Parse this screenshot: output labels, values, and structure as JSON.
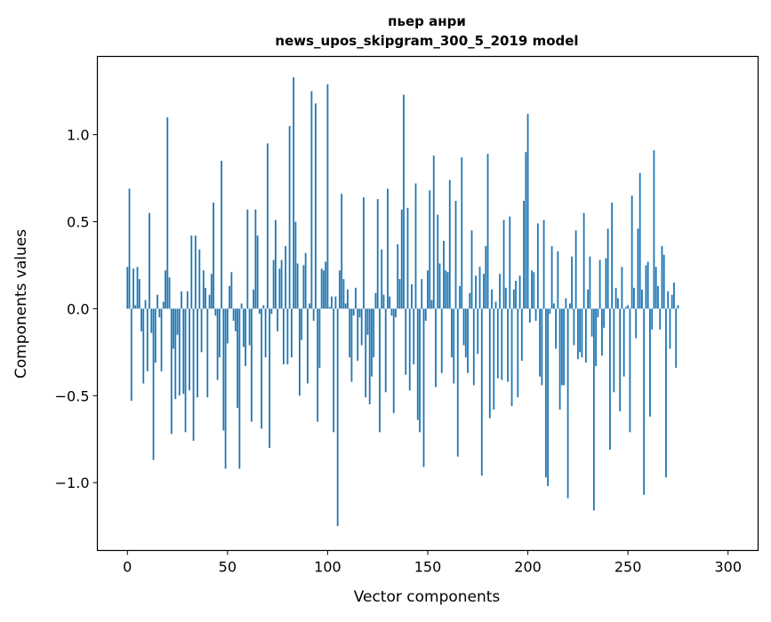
{
  "chart_data": {
    "type": "bar",
    "title": "пьер анри",
    "subtitle": "news_upos_skipgram_300_5_2019 model",
    "xlabel": "Vector components",
    "ylabel": "Components values",
    "xlim": [
      -15,
      315
    ],
    "ylim": [
      -1.39,
      1.45
    ],
    "xticks": [
      0,
      50,
      100,
      150,
      200,
      250,
      300
    ],
    "yticks": [
      -1.0,
      -0.5,
      0.0,
      0.5,
      1.0
    ],
    "ytick_labels": [
      "−1.0",
      "−0.5",
      "0.0",
      "0.5",
      "1.0"
    ],
    "color": "#1f77b4",
    "grid": false,
    "values": [
      0.24,
      0.69,
      -0.53,
      0.23,
      0.02,
      0.24,
      0.17,
      -0.13,
      -0.43,
      0.05,
      -0.36,
      0.55,
      -0.14,
      -0.87,
      -0.31,
      0.08,
      -0.05,
      -0.36,
      0.04,
      0.22,
      1.1,
      0.18,
      -0.72,
      -0.23,
      -0.52,
      -0.15,
      -0.5,
      0.1,
      -0.49,
      -0.71,
      0.1,
      -0.47,
      0.42,
      -0.76,
      0.42,
      -0.51,
      0.34,
      -0.25,
      0.22,
      0.12,
      -0.51,
      0.08,
      0.2,
      0.61,
      -0.04,
      -0.41,
      -0.28,
      0.85,
      -0.7,
      -0.92,
      -0.2,
      0.13,
      0.21,
      -0.07,
      -0.13,
      -0.57,
      -0.92,
      0.03,
      -0.22,
      -0.33,
      0.57,
      -0.21,
      -0.65,
      0.11,
      0.57,
      0.42,
      -0.03,
      -0.69,
      0.02,
      -0.28,
      0.95,
      -0.8,
      -0.03,
      0.28,
      0.51,
      -0.13,
      0.23,
      0.28,
      -0.32,
      0.36,
      -0.32,
      1.05,
      -0.28,
      1.33,
      0.5,
      0.26,
      -0.5,
      -0.18,
      0.25,
      0.32,
      -0.43,
      0.03,
      1.25,
      -0.07,
      1.18,
      -0.65,
      -0.34,
      0.23,
      0.22,
      0.27,
      1.29,
      0.01,
      0.07,
      -0.71,
      0.07,
      -1.25,
      0.22,
      0.66,
      0.17,
      0.03,
      0.11,
      -0.28,
      -0.42,
      -0.04,
      0.12,
      -0.3,
      -0.05,
      -0.21,
      0.64,
      -0.51,
      -0.15,
      -0.55,
      -0.39,
      -0.28,
      0.09,
      0.63,
      -0.71,
      0.34,
      0.08,
      -0.48,
      0.69,
      0.07,
      -0.04,
      -0.6,
      -0.05,
      0.37,
      0.17,
      0.57,
      1.23,
      -0.38,
      0.58,
      -0.47,
      0.14,
      -0.32,
      0.72,
      -0.64,
      -0.71,
      0.17,
      -0.91,
      -0.07,
      0.22,
      0.68,
      0.05,
      0.88,
      -0.45,
      0.54,
      0.26,
      -0.37,
      0.39,
      0.22,
      0.21,
      0.74,
      -0.28,
      -0.43,
      0.62,
      -0.85,
      0.13,
      0.87,
      -0.21,
      -0.28,
      -0.37,
      0.09,
      0.45,
      -0.44,
      0.19,
      -0.26,
      0.24,
      -0.96,
      0.2,
      0.36,
      0.89,
      -0.63,
      0.11,
      -0.58,
      0.04,
      -0.4,
      0.2,
      -0.41,
      0.51,
      0.12,
      -0.42,
      0.53,
      -0.56,
      0.11,
      0.16,
      -0.51,
      0.19,
      -0.3,
      0.62,
      0.9,
      1.12,
      -0.08,
      0.22,
      0.21,
      -0.07,
      0.49,
      -0.39,
      -0.44,
      0.51,
      -0.97,
      -1.02,
      -0.03,
      0.36,
      0.03,
      -0.23,
      0.33,
      -0.58,
      -0.44,
      -0.44,
      0.06,
      -1.09,
      0.03,
      0.3,
      -0.21,
      0.45,
      -0.29,
      -0.25,
      -0.28,
      0.55,
      -0.31,
      0.11,
      0.3,
      -0.16,
      -1.16,
      -0.33,
      -0.05,
      0.28,
      -0.27,
      -0.11,
      0.29,
      0.46,
      -0.81,
      0.61,
      -0.48,
      0.12,
      0.06,
      -0.59,
      0.24,
      -0.39,
      0.01,
      0.02,
      -0.71,
      0.65,
      0.12,
      -0.17,
      0.46,
      0.78,
      0.11,
      -1.07,
      0.25,
      0.27,
      -0.62,
      -0.12,
      0.91,
      0.24,
      0.13,
      -0.12,
      0.36,
      0.31,
      -0.97,
      0.1,
      -0.23,
      0.08,
      0.15,
      -0.34,
      0.02
    ]
  }
}
